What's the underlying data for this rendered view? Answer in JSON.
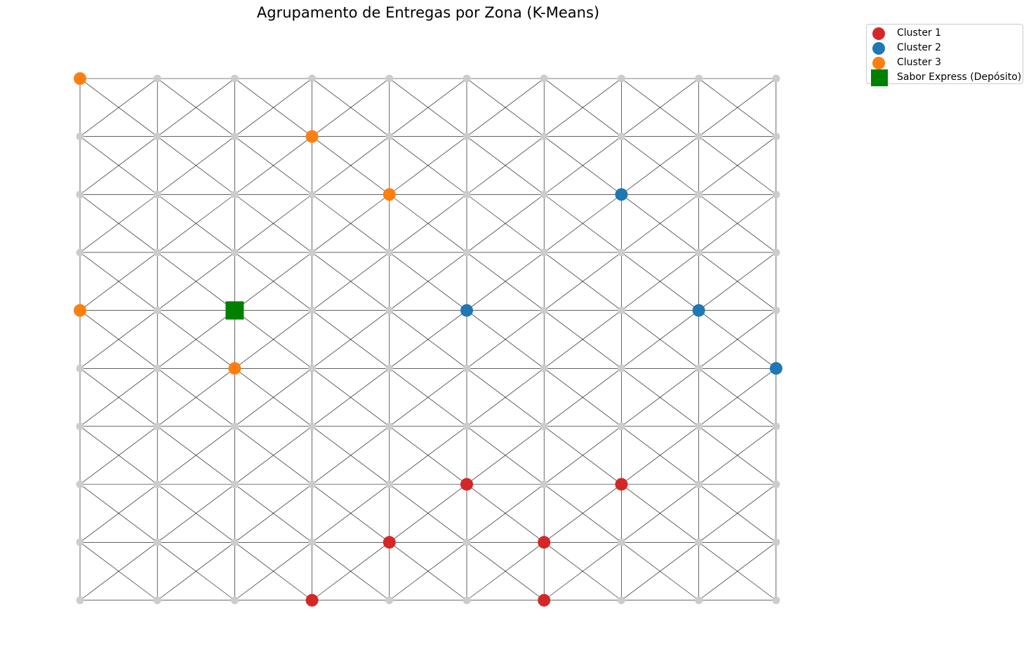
{
  "chart_data": {
    "type": "scatter",
    "title": "Agrupamento de Entregas por Zona (K-Means)",
    "xlabel": "",
    "ylabel": "",
    "grid": {
      "cols": 10,
      "rows": 10,
      "xlim": [
        0,
        9
      ],
      "ylim": [
        0,
        9
      ],
      "node_color": "#cccccc",
      "edge_color": "#000000",
      "edges": "horizontal, vertical and both diagonals in every cell"
    },
    "series": [
      {
        "name": "Cluster 1",
        "color": "#d62728",
        "marker": "circle",
        "points": [
          [
            3,
            0
          ],
          [
            6,
            0
          ],
          [
            4,
            1
          ],
          [
            6,
            1
          ],
          [
            5,
            2
          ],
          [
            7,
            2
          ]
        ]
      },
      {
        "name": "Cluster 2",
        "color": "#1f77b4",
        "marker": "circle",
        "points": [
          [
            7,
            7
          ],
          [
            5,
            5
          ],
          [
            8,
            5
          ],
          [
            9,
            4
          ]
        ]
      },
      {
        "name": "Cluster 3",
        "color": "#ff7f0e",
        "marker": "circle",
        "points": [
          [
            0,
            9
          ],
          [
            3,
            8
          ],
          [
            4,
            7
          ],
          [
            0,
            5
          ],
          [
            2,
            4
          ]
        ]
      },
      {
        "name": "Sabor Express (Depósito)",
        "color": "#008000",
        "marker": "square",
        "points": [
          [
            2,
            5
          ]
        ]
      }
    ],
    "legend": {
      "position": "top-right-outside"
    }
  }
}
